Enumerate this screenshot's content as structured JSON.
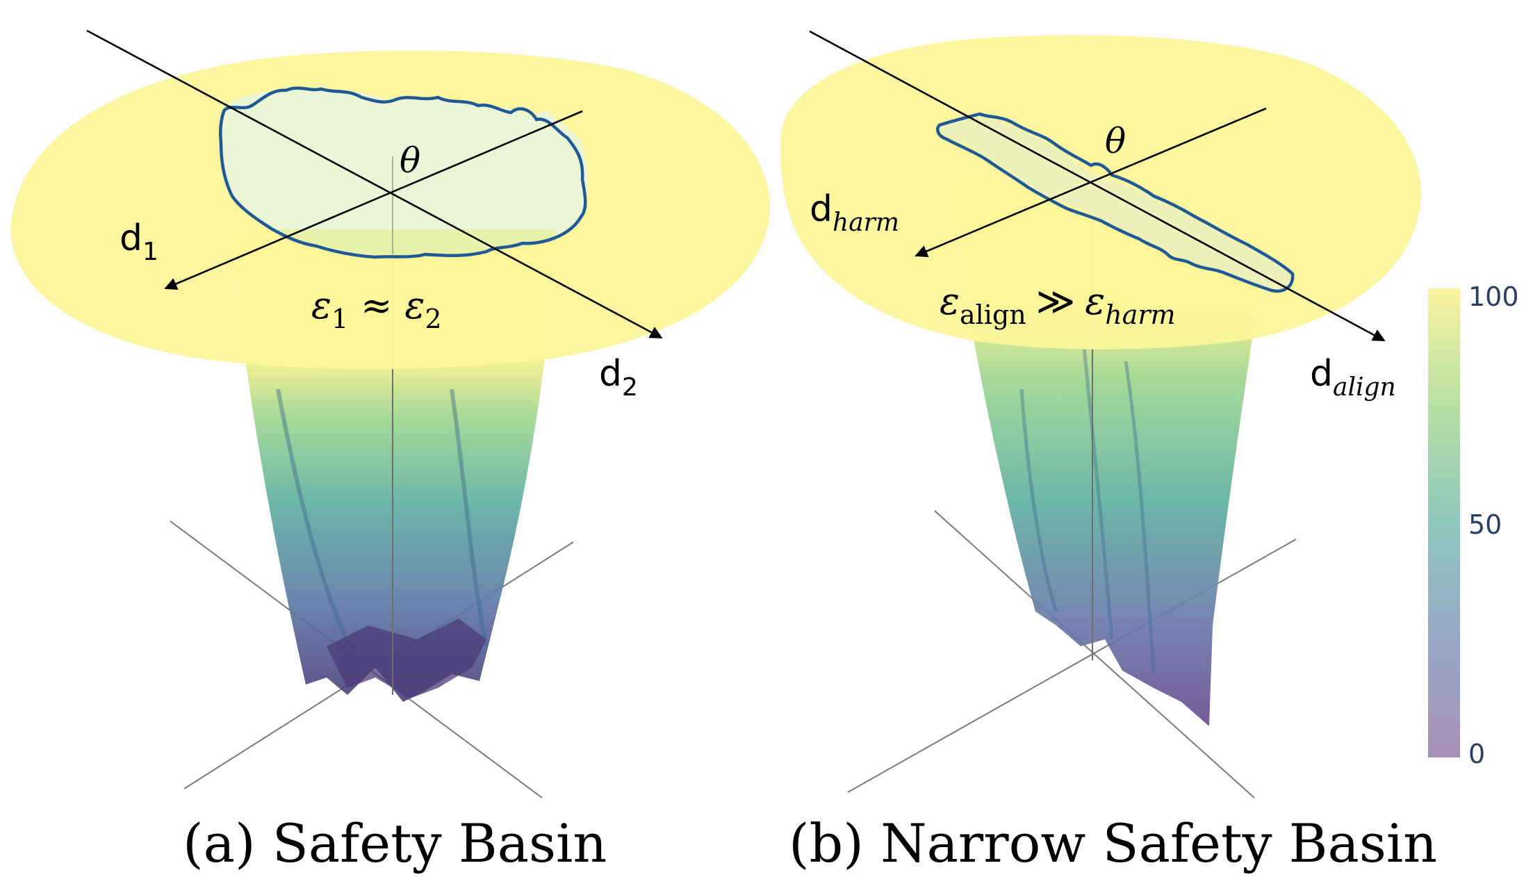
{
  "panels": {
    "a": {
      "caption": "(a) Safety Basin",
      "theta": "θ",
      "dir1": {
        "base": "d",
        "sub": "1"
      },
      "dir2": {
        "base": "d",
        "sub": "2"
      },
      "relation": {
        "lhs_base": "ε",
        "lhs_sub": "1",
        "op": "≈",
        "rhs_base": "ε",
        "rhs_sub": "2"
      }
    },
    "b": {
      "caption": "(b) Narrow Safety Basin",
      "theta": "θ",
      "dir1": {
        "base": "d",
        "sub": "harm"
      },
      "dir2": {
        "base": "d",
        "sub": "align"
      },
      "relation": {
        "lhs_base": "ε",
        "lhs_sub": "align",
        "op": "≫",
        "rhs_base": "ε",
        "rhs_sub": "harm"
      }
    }
  },
  "colorbar": {
    "ticks": [
      "100",
      "50",
      "0"
    ],
    "colormap": [
      "#fde725",
      "#5ec962",
      "#21918c",
      "#3b528b",
      "#440154"
    ],
    "opacity": 0.5
  },
  "colors": {
    "rim": "#fbf59a",
    "outline": "#1f5a96",
    "arrow": "#000000",
    "axis": "#7a7a7a"
  }
}
